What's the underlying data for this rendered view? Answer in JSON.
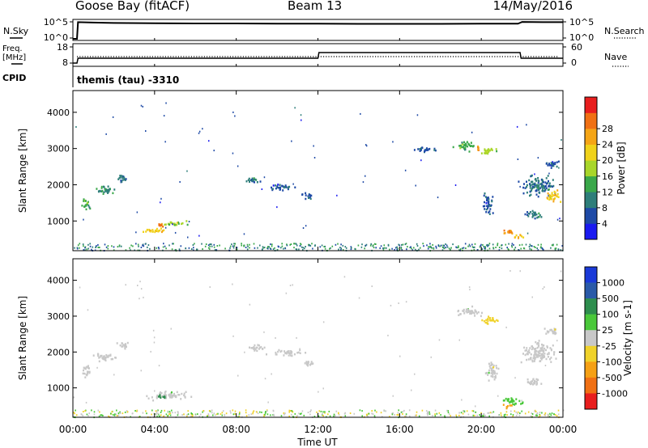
{
  "header": {
    "station": "Goose Bay (fitACF)",
    "beam": "Beam 13",
    "date": "14/May/2016"
  },
  "noise_panel": {
    "left_label": "N.Sky",
    "right_label": "N.Search",
    "left_ticks": [
      "10^5",
      "10^0"
    ],
    "right_ticks": [
      "10^5",
      "10^0"
    ]
  },
  "freq_panel": {
    "left_label_1": "Freq.",
    "left_label_2": "[MHz]",
    "left_label_3": "CPID",
    "right_label": "Nave",
    "left_ticks": [
      "18",
      "8"
    ],
    "right_ticks": [
      "60",
      "0"
    ],
    "cpid_text": "themis (tau) -3310"
  },
  "axes": {
    "ylabel": "Slant Range [km]",
    "xlabel": "Time UT",
    "y_ticks": [
      "1000",
      "2000",
      "3000",
      "4000"
    ],
    "x_ticks": [
      "00:00",
      "04:00",
      "08:00",
      "12:00",
      "16:00",
      "20:00",
      "00:00"
    ]
  },
  "power_colorbar": {
    "label": "Power [dB]",
    "ticks": [
      "4",
      "8",
      "12",
      "16",
      "20",
      "24",
      "28"
    ],
    "colors": [
      "#1a1af0",
      "#1e4aa6",
      "#2e7e7a",
      "#3aa84a",
      "#a8d62a",
      "#f0d21a",
      "#f5a516",
      "#f07014",
      "#e81e1e"
    ]
  },
  "velocity_colorbar": {
    "label": "Velocity [m s-1]",
    "ticks": [
      "1000",
      "500",
      "100",
      "25",
      "-25",
      "-100",
      "-500",
      "-1000"
    ],
    "colors": [
      "#1a3ad8",
      "#2a5aa8",
      "#2e8e4e",
      "#4ac83a",
      "#c8c8c8",
      "#f0d22a",
      "#f5a015",
      "#f07014",
      "#e81e1e"
    ]
  },
  "chart_data": {
    "type": "heatmap",
    "x_unit": "UT hour",
    "xlim": [
      0,
      24
    ],
    "ylim": [
      180,
      4600
    ],
    "noise_sky_trace": [
      [
        0.0,
        0.0
      ],
      [
        0.2,
        0.0
      ],
      [
        0.25,
        0.86
      ],
      [
        1.0,
        0.84
      ],
      [
        2.0,
        0.82
      ],
      [
        4.0,
        0.8
      ],
      [
        6.0,
        0.79
      ],
      [
        8.0,
        0.79
      ],
      [
        10.0,
        0.78
      ],
      [
        12.0,
        0.78
      ],
      [
        14.0,
        0.77
      ],
      [
        16.0,
        0.77
      ],
      [
        18.0,
        0.77
      ],
      [
        20.0,
        0.78
      ],
      [
        21.8,
        0.78
      ],
      [
        22.0,
        0.87
      ],
      [
        23.0,
        0.86
      ],
      [
        24.0,
        0.86
      ]
    ],
    "frequency_trace": [
      [
        0.0,
        8.0
      ],
      [
        0.2,
        8.0
      ],
      [
        0.25,
        11.0
      ],
      [
        12.0,
        11.0
      ],
      [
        12.05,
        14.5
      ],
      [
        21.9,
        14.5
      ],
      [
        21.95,
        11.0
      ],
      [
        24.0,
        11.0
      ]
    ],
    "nave_level": 24,
    "power_blobs": [
      {
        "t": 0.6,
        "r": 1500,
        "w": 0.4,
        "h": 300,
        "p": 14
      },
      {
        "t": 1.5,
        "r": 1900,
        "w": 1.0,
        "h": 200,
        "p": 12
      },
      {
        "t": 2.4,
        "r": 2200,
        "w": 0.5,
        "h": 200,
        "p": 10
      },
      {
        "t": 4.0,
        "r": 750,
        "w": 1.2,
        "h": 120,
        "p": 22
      },
      {
        "t": 5.0,
        "r": 950,
        "w": 1.2,
        "h": 120,
        "p": 18
      },
      {
        "t": 4.2,
        "r": 900,
        "w": 0.5,
        "h": 120,
        "p": 26
      },
      {
        "t": 8.8,
        "r": 2150,
        "w": 0.7,
        "h": 160,
        "p": 10
      },
      {
        "t": 10.2,
        "r": 1950,
        "w": 1.2,
        "h": 150,
        "p": 8
      },
      {
        "t": 11.4,
        "r": 1700,
        "w": 0.6,
        "h": 150,
        "p": 8
      },
      {
        "t": 17.2,
        "r": 3000,
        "w": 1.0,
        "h": 140,
        "p": 8
      },
      {
        "t": 19.2,
        "r": 3100,
        "w": 1.0,
        "h": 200,
        "p": 14
      },
      {
        "t": 20.3,
        "r": 2950,
        "w": 0.8,
        "h": 180,
        "p": 18
      },
      {
        "t": 19.8,
        "r": 3050,
        "w": 0.2,
        "h": 150,
        "p": 26
      },
      {
        "t": 20.3,
        "r": 1500,
        "w": 0.5,
        "h": 500,
        "p": 8
      },
      {
        "t": 21.3,
        "r": 700,
        "w": 0.6,
        "h": 140,
        "p": 26
      },
      {
        "t": 21.8,
        "r": 600,
        "w": 0.4,
        "h": 140,
        "p": 22
      },
      {
        "t": 22.8,
        "r": 2000,
        "w": 1.4,
        "h": 500,
        "p": 10
      },
      {
        "t": 23.5,
        "r": 1700,
        "w": 0.6,
        "h": 300,
        "p": 22
      },
      {
        "t": 23.4,
        "r": 2600,
        "w": 0.6,
        "h": 200,
        "p": 8
      },
      {
        "t": 22.5,
        "r": 1200,
        "w": 0.8,
        "h": 200,
        "p": 10
      }
    ],
    "velocity_blobs": [
      {
        "t": 0.6,
        "r": 1500,
        "w": 0.4,
        "h": 300,
        "v": 0
      },
      {
        "t": 1.5,
        "r": 1900,
        "w": 1.0,
        "h": 200,
        "v": 0
      },
      {
        "t": 2.4,
        "r": 2200,
        "w": 0.5,
        "h": 200,
        "v": 0
      },
      {
        "t": 4.5,
        "r": 820,
        "w": 1.8,
        "h": 200,
        "v": 0
      },
      {
        "t": 4.3,
        "r": 780,
        "w": 0.6,
        "h": 80,
        "v": 250
      },
      {
        "t": 9.0,
        "r": 2150,
        "w": 0.8,
        "h": 160,
        "v": 0
      },
      {
        "t": 10.5,
        "r": 2000,
        "w": 1.4,
        "h": 150,
        "v": 0
      },
      {
        "t": 11.5,
        "r": 1700,
        "w": 0.6,
        "h": 150,
        "v": 0
      },
      {
        "t": 19.3,
        "r": 3150,
        "w": 1.2,
        "h": 200,
        "v": 0
      },
      {
        "t": 20.4,
        "r": 2900,
        "w": 0.8,
        "h": 180,
        "v": -60
      },
      {
        "t": 20.5,
        "r": 1500,
        "w": 0.5,
        "h": 500,
        "v": 0
      },
      {
        "t": 21.5,
        "r": 650,
        "w": 0.9,
        "h": 200,
        "v": 80
      },
      {
        "t": 21.2,
        "r": 500,
        "w": 0.4,
        "h": 120,
        "v": -300
      },
      {
        "t": 22.8,
        "r": 2000,
        "w": 1.4,
        "h": 500,
        "v": 0
      },
      {
        "t": 23.4,
        "r": 2600,
        "w": 0.6,
        "h": 200,
        "v": 0
      },
      {
        "t": 22.5,
        "r": 1200,
        "w": 0.8,
        "h": 200,
        "v": 0
      }
    ],
    "ground_scatter_range": [
      200,
      400
    ]
  }
}
